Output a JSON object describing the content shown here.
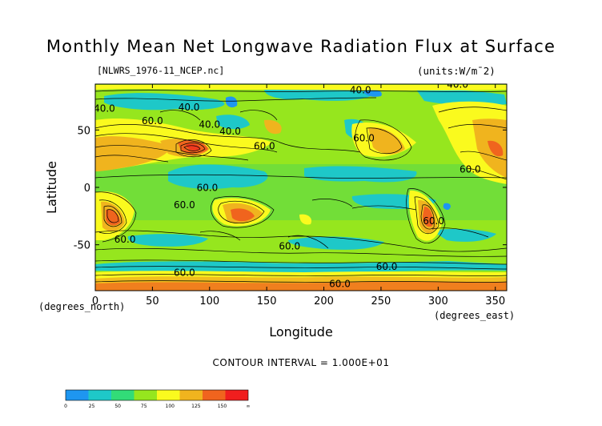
{
  "title": "Monthly Mean Net Longwave Radiation Flux at Surface",
  "file_label": "[NLWRS_1976-11_NCEP.nc]",
  "units_label": "(units:W/m¯2)",
  "contour_interval": "CONTOUR INTERVAL = 1.000E+01",
  "chart_data": {
    "type": "heatmap",
    "title": "Monthly Mean Net Longwave Radiation Flux at Surface",
    "xlabel": "Longitude",
    "ylabel": "Latitude",
    "x_sublabel_left": "(degrees_north)",
    "x_sublabel_right": "(degrees_east)",
    "xlim": [
      0,
      360
    ],
    "ylim": [
      -90,
      90
    ],
    "xticks": [
      0,
      50,
      100,
      150,
      200,
      250,
      300,
      350
    ],
    "yticks": [
      50,
      0,
      -50
    ],
    "contour_labels": [
      {
        "text": "40.0",
        "lon": 8,
        "lat": 66
      },
      {
        "text": "60.0",
        "lon": 50,
        "lat": 55
      },
      {
        "text": "40.0",
        "lon": 82,
        "lat": 67
      },
      {
        "text": "40.0",
        "lon": 100,
        "lat": 52
      },
      {
        "text": "40.0",
        "lon": 118,
        "lat": 46
      },
      {
        "text": "60.0",
        "lon": 148,
        "lat": 33
      },
      {
        "text": "60.0",
        "lon": 98,
        "lat": -3
      },
      {
        "text": "60.0",
        "lon": 78,
        "lat": -18
      },
      {
        "text": "60.0",
        "lon": 26,
        "lat": -48
      },
      {
        "text": "60.0",
        "lon": 170,
        "lat": -54
      },
      {
        "text": "40.0",
        "lon": 232,
        "lat": 82
      },
      {
        "text": "40.0",
        "lon": 317,
        "lat": 87
      },
      {
        "text": "60.0",
        "lon": 235,
        "lat": 40
      },
      {
        "text": "60.0",
        "lon": 328,
        "lat": 13
      },
      {
        "text": "60.0",
        "lon": 296,
        "lat": -32
      },
      {
        "text": "60.0",
        "lon": 255,
        "lat": -72
      },
      {
        "text": "60.0",
        "lon": 78,
        "lat": -77
      },
      {
        "text": "60.0",
        "lon": 214,
        "lat": -87
      }
    ],
    "colorbar": {
      "levels": [
        "0",
        "25",
        "50",
        "75",
        "100",
        "125",
        "150",
        "∞"
      ],
      "colors": [
        "#1e96f0",
        "#1ec8c8",
        "#32dc78",
        "#96e61e",
        "#fafa1e",
        "#f0b41e",
        "#f0641e",
        "#f01e1e"
      ]
    }
  }
}
